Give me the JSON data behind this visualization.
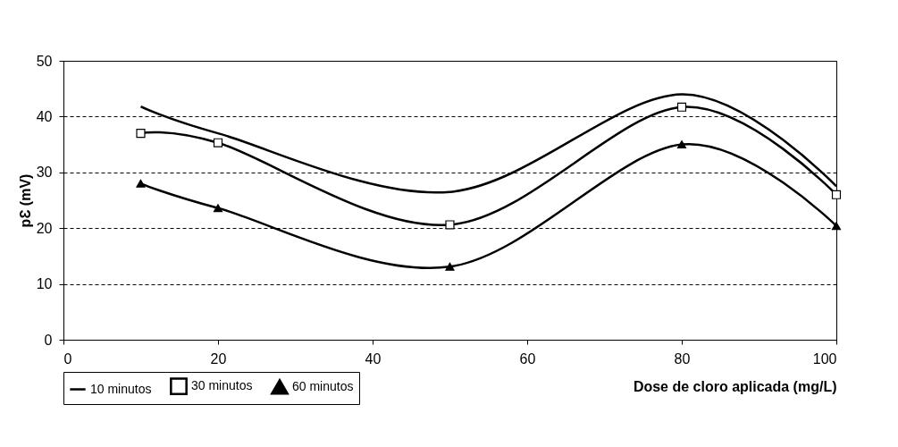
{
  "chart_data": {
    "type": "line",
    "xlabel": "Dose de cloro aplicada (mg/L)",
    "ylabel": "pƐ (mV)",
    "x": [
      10,
      20,
      50,
      80,
      100
    ],
    "series": [
      {
        "name": "10 minutos",
        "color": "#000000",
        "marker": "none",
        "values": [
          41.8,
          37,
          26.5,
          44,
          27.5
        ]
      },
      {
        "name": "30 minutos",
        "color": "#000000",
        "marker": "square",
        "values": [
          37,
          35.3,
          20.6,
          41.7,
          26
        ]
      },
      {
        "name": "60 minutos",
        "color": "#000000",
        "marker": "triangle",
        "values": [
          28,
          23.6,
          13.1,
          35,
          20.4
        ]
      }
    ],
    "xlim": [
      0,
      100
    ],
    "xticks": [
      0,
      20,
      40,
      60,
      80,
      100
    ],
    "ylim": [
      0,
      50
    ],
    "yticks": [
      0,
      10,
      20,
      30,
      40,
      50
    ],
    "grid": "y",
    "legend": "bottom"
  }
}
